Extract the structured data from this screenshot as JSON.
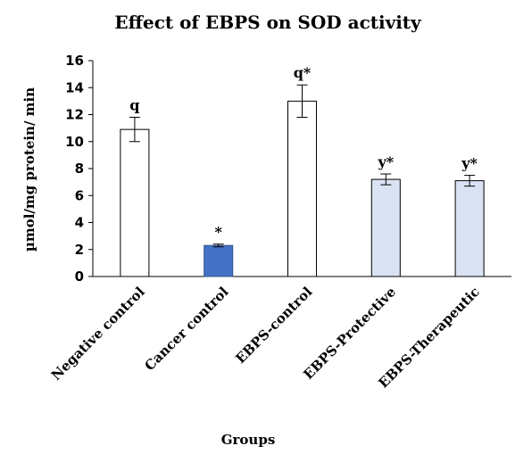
{
  "chart_data": {
    "type": "bar",
    "title": "Effect of EBPS on SOD activity",
    "xlabel": "Groups",
    "ylabel": "µmol/mg protein/ min",
    "ylim": [
      0,
      16
    ],
    "yticks": [
      0,
      2,
      4,
      6,
      8,
      10,
      12,
      14,
      16
    ],
    "grid": false,
    "categories": [
      "Negative control",
      "Cancer control",
      "EBPS-control",
      "EBPS-Protective",
      "EBPS-Therapeutic"
    ],
    "values": [
      10.9,
      2.3,
      13.0,
      7.2,
      7.1
    ],
    "errors": [
      0.9,
      0.1,
      1.2,
      0.4,
      0.4
    ],
    "significance": [
      "q",
      "*",
      "q*",
      "y*",
      "y*"
    ],
    "bar_colors": [
      "#ffffff",
      "#4472c4",
      "#ffffff",
      "#dae3f3",
      "#dae3f3"
    ]
  }
}
